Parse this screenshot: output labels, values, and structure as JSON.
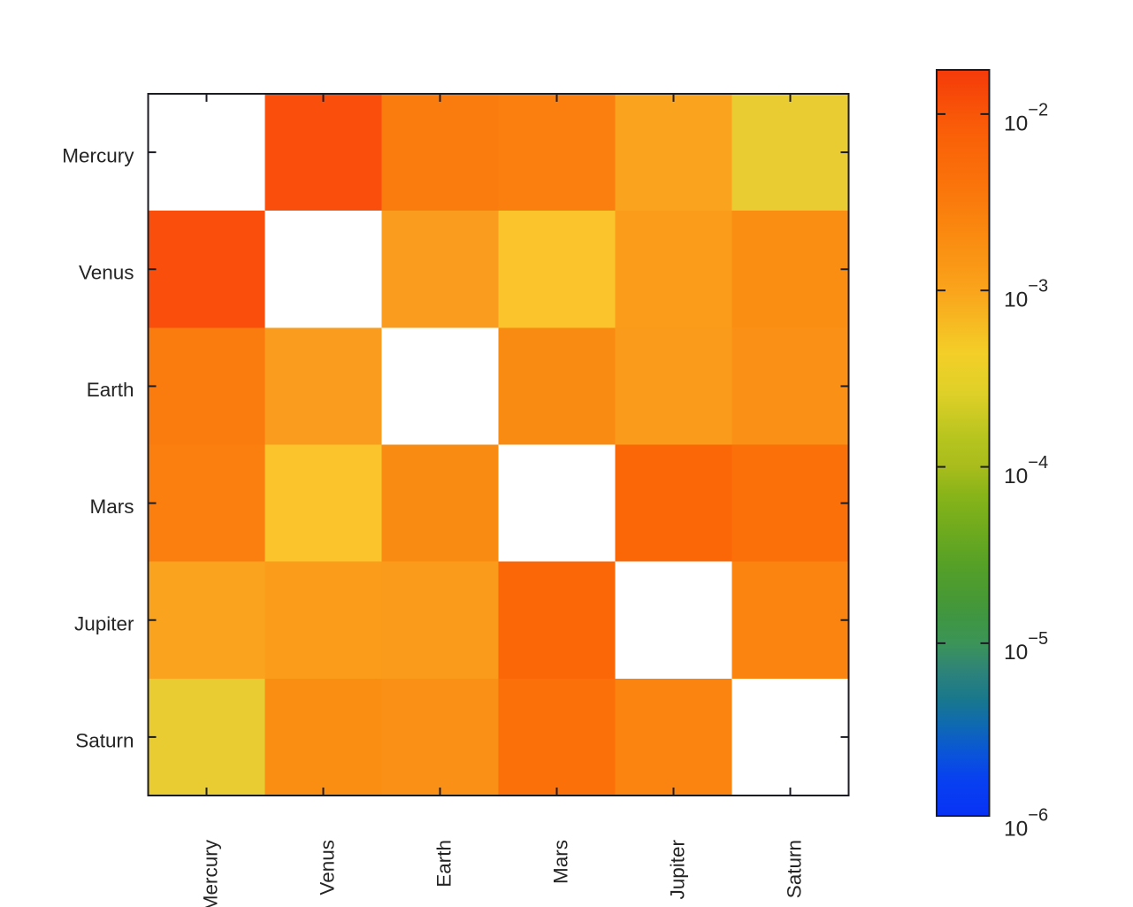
{
  "figure": {
    "background_color": "#ffffff",
    "axis_color": "#1c1c24",
    "text_color": "#242424",
    "nan_cell_color": "#ffffff"
  },
  "chart_data": {
    "type": "heatmap",
    "title": "",
    "xlabel": "",
    "ylabel": "",
    "categories": [
      "Mercury",
      "Venus",
      "Earth",
      "Mars",
      "Jupiter",
      "Saturn"
    ],
    "x_tick_labels": [
      "Mercury",
      "Venus",
      "Earth",
      "Mars",
      "Jupiter",
      "Saturn"
    ],
    "y_tick_labels": [
      "Mercury",
      "Venus",
      "Earth",
      "Mars",
      "Jupiter",
      "Saturn"
    ],
    "values": [
      [
        null,
        0.012,
        0.0032,
        0.0028,
        0.001,
        0.00033
      ],
      [
        0.012,
        null,
        0.0011,
        0.00054,
        0.0012,
        0.0018
      ],
      [
        0.0032,
        0.0011,
        null,
        0.002,
        0.0012,
        0.0017
      ],
      [
        0.0028,
        0.00054,
        0.002,
        null,
        0.0063,
        0.0045
      ],
      [
        0.001,
        0.0012,
        0.0012,
        0.0063,
        null,
        0.0025
      ],
      [
        0.00033,
        0.0018,
        0.0017,
        0.0045,
        0.0025,
        null
      ]
    ],
    "cell_colors": [
      [
        "#ffffff",
        "#FA4E0C",
        "#FA7B0E",
        "#FA7F0E",
        "#FAA31E",
        "#E8CC31"
      ],
      [
        "#FA4E0C",
        "#ffffff",
        "#FA9D1E",
        "#FBC32C",
        "#FB9D1A",
        "#FA8E13"
      ],
      [
        "#FA7B0E",
        "#FA9D1E",
        "#ffffff",
        "#F98B12",
        "#FA9B1B",
        "#FA9015"
      ],
      [
        "#FA7F0E",
        "#FBC32C",
        "#F98B12",
        "#ffffff",
        "#FB6606",
        "#FB7008"
      ],
      [
        "#FAA31E",
        "#FB9D1A",
        "#FA9B1B",
        "#FB6606",
        "#ffffff",
        "#FB830F"
      ],
      [
        "#E8CC31",
        "#FA8E13",
        "#FA9015",
        "#FB7008",
        "#FB830F",
        "#ffffff"
      ]
    ],
    "grid": false,
    "legend_position": "right",
    "colorscale": {
      "scale": "log",
      "range_min": 1.05e-06,
      "range_max": 0.0178,
      "ticks": [
        {
          "base": "10",
          "exponent": "−2",
          "value": 0.01
        },
        {
          "base": "10",
          "exponent": "−3",
          "value": 0.001
        },
        {
          "base": "10",
          "exponent": "−4",
          "value": 0.0001
        },
        {
          "base": "10",
          "exponent": "−5",
          "value": 1e-05
        },
        {
          "base": "10",
          "exponent": "−6",
          "value": 1e-06
        }
      ],
      "gradient_stops": [
        {
          "pos": 0.0,
          "color": "#0832F5"
        },
        {
          "pos": 0.05,
          "color": "#0841F0"
        },
        {
          "pos": 0.085,
          "color": "#0A55D7"
        },
        {
          "pos": 0.121,
          "color": "#0F69B2"
        },
        {
          "pos": 0.157,
          "color": "#19788C"
        },
        {
          "pos": 0.192,
          "color": "#2D827A"
        },
        {
          "pos": 0.231,
          "color": "#3C9458"
        },
        {
          "pos": 0.263,
          "color": "#3E9644"
        },
        {
          "pos": 0.287,
          "color": "#469837"
        },
        {
          "pos": 0.335,
          "color": "#55A028"
        },
        {
          "pos": 0.382,
          "color": "#6EAA1E"
        },
        {
          "pos": 0.429,
          "color": "#87B419"
        },
        {
          "pos": 0.467,
          "color": "#A8BC1C"
        },
        {
          "pos": 0.501,
          "color": "#B4C31E"
        },
        {
          "pos": 0.566,
          "color": "#DED028"
        },
        {
          "pos": 0.619,
          "color": "#F3CF28"
        },
        {
          "pos": 0.702,
          "color": "#FAA51C"
        },
        {
          "pos": 0.738,
          "color": "#FA9816"
        },
        {
          "pos": 0.797,
          "color": "#FA840E"
        },
        {
          "pos": 0.857,
          "color": "#FA700A"
        },
        {
          "pos": 0.916,
          "color": "#FA5F08"
        },
        {
          "pos": 0.941,
          "color": "#F85508"
        },
        {
          "pos": 1.0,
          "color": "#F53A0A"
        }
      ]
    }
  }
}
